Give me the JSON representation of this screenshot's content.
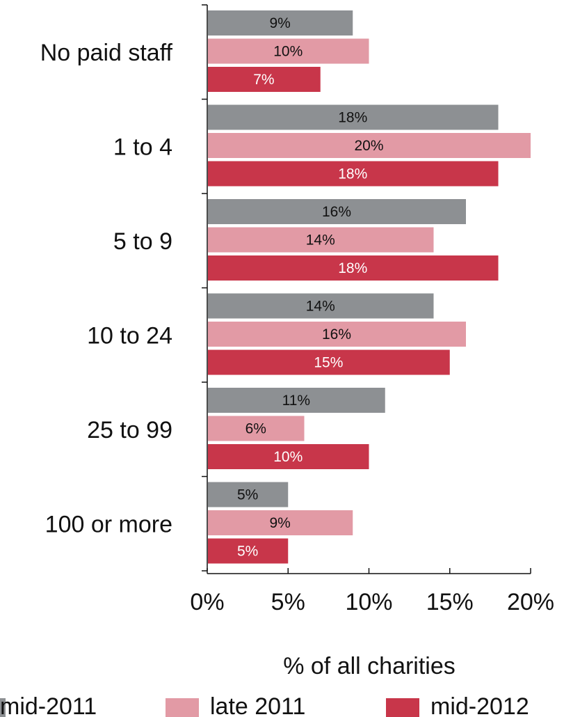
{
  "chart_data": {
    "type": "bar",
    "orientation": "horizontal",
    "categories": [
      "No paid staff",
      "1 to 4",
      "5 to 9",
      "10 to 24",
      "25 to 99",
      "100 or more"
    ],
    "series": [
      {
        "name": "mid-2011",
        "color": "#8d9093",
        "label_color": "#111111",
        "values": [
          9,
          18,
          16,
          14,
          11,
          5
        ],
        "labels": [
          "9%",
          "18%",
          "16%",
          "14%",
          "11%",
          "5%"
        ]
      },
      {
        "name": "late 2011",
        "color": "#e29aa5",
        "label_color": "#111111",
        "values": [
          10,
          20,
          14,
          16,
          6,
          9
        ],
        "labels": [
          "10%",
          "20%",
          "14%",
          "16%",
          "6%",
          "9%"
        ]
      },
      {
        "name": "mid-2012",
        "color": "#c8364a",
        "label_color": "#ffffff",
        "values": [
          7,
          18,
          18,
          15,
          10,
          5
        ],
        "labels": [
          "7%",
          "18%",
          "18%",
          "15%",
          "10%",
          "5%"
        ]
      }
    ],
    "xlabel": "% of all charities",
    "xlim": [
      0,
      20
    ],
    "x_ticks": [
      0,
      5,
      10,
      15,
      20
    ],
    "x_tick_labels": [
      "0%",
      "5%",
      "10%",
      "15%",
      "20%"
    ],
    "grid": false,
    "legend_position": "bottom"
  }
}
